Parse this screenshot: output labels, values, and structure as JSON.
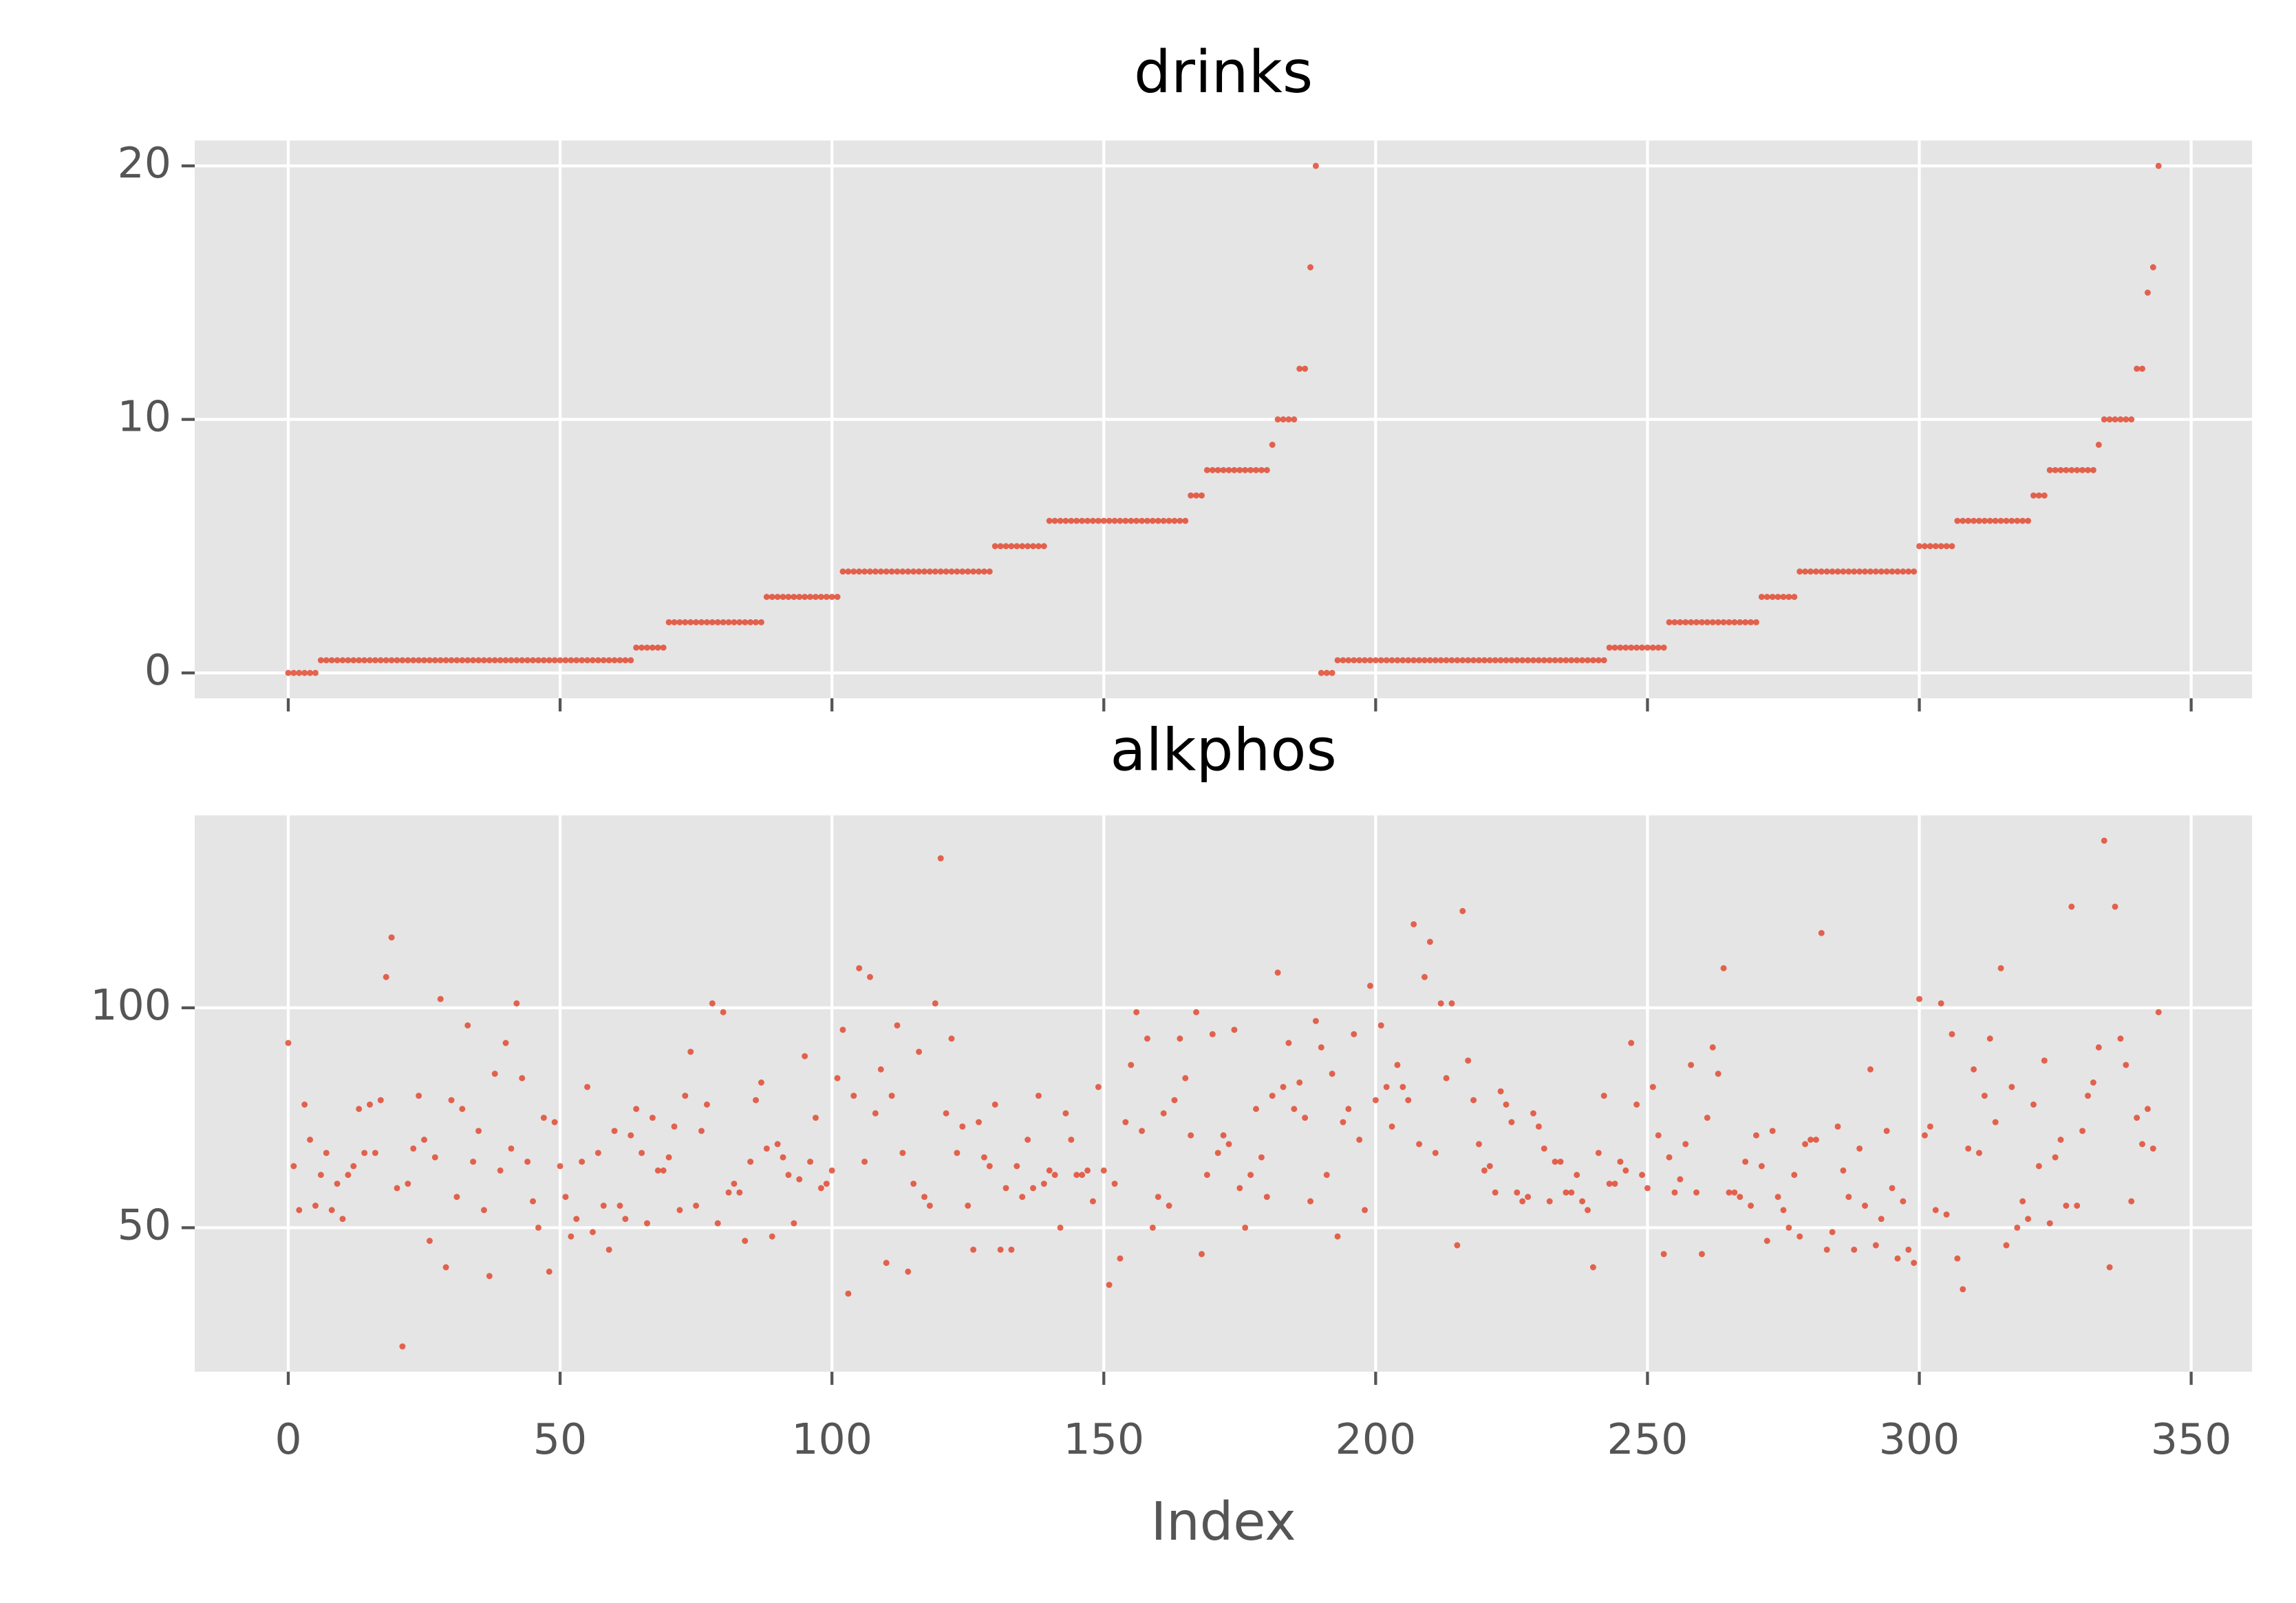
{
  "chart_data": [
    {
      "type": "scatter",
      "title": "drinks",
      "color": "#e24a33",
      "xlim": [
        -17.2,
        361.2
      ],
      "ylim": [
        -1,
        21
      ],
      "xticks": [
        0,
        50,
        100,
        150,
        200,
        250,
        300,
        350
      ],
      "yticks": [
        0,
        10,
        20
      ],
      "grid": true,
      "x": [
        0,
        1,
        2,
        3,
        4,
        5,
        6,
        7,
        8,
        9,
        10,
        11,
        12,
        13,
        14,
        15,
        16,
        17,
        18,
        19,
        20,
        21,
        22,
        23,
        24,
        25,
        26,
        27,
        28,
        29,
        30,
        31,
        32,
        33,
        34,
        35,
        36,
        37,
        38,
        39,
        40,
        41,
        42,
        43,
        44,
        45,
        46,
        47,
        48,
        49,
        50,
        51,
        52,
        53,
        54,
        55,
        56,
        57,
        58,
        59,
        60,
        61,
        62,
        63,
        64,
        65,
        66,
        67,
        68,
        69,
        70,
        71,
        72,
        73,
        74,
        75,
        76,
        77,
        78,
        79,
        80,
        81,
        82,
        83,
        84,
        85,
        86,
        87,
        88,
        89,
        90,
        91,
        92,
        93,
        94,
        95,
        96,
        97,
        98,
        99,
        100,
        101,
        102,
        103,
        104,
        105,
        106,
        107,
        108,
        109,
        110,
        111,
        112,
        113,
        114,
        115,
        116,
        117,
        118,
        119,
        120,
        121,
        122,
        123,
        124,
        125,
        126,
        127,
        128,
        129,
        130,
        131,
        132,
        133,
        134,
        135,
        136,
        137,
        138,
        139,
        140,
        141,
        142,
        143,
        144,
        145,
        146,
        147,
        148,
        149,
        150,
        151,
        152,
        153,
        154,
        155,
        156,
        157,
        158,
        159,
        160,
        161,
        162,
        163,
        164,
        165,
        166,
        167,
        168,
        169,
        170,
        171,
        172,
        173,
        174,
        175,
        176,
        177,
        178,
        179,
        180,
        181,
        182,
        183,
        184,
        185,
        186,
        187,
        188,
        189,
        190,
        191,
        192,
        193,
        194,
        195,
        196,
        197,
        198,
        199,
        200,
        201,
        202,
        203,
        204,
        205,
        206,
        207,
        208,
        209,
        210,
        211,
        212,
        213,
        214,
        215,
        216,
        217,
        218,
        219,
        220,
        221,
        222,
        223,
        224,
        225,
        226,
        227,
        228,
        229,
        230,
        231,
        232,
        233,
        234,
        235,
        236,
        237,
        238,
        239,
        240,
        241,
        242,
        243,
        244,
        245,
        246,
        247,
        248,
        249,
        250,
        251,
        252,
        253,
        254,
        255,
        256,
        257,
        258,
        259,
        260,
        261,
        262,
        263,
        264,
        265,
        266,
        267,
        268,
        269,
        270,
        271,
        272,
        273,
        274,
        275,
        276,
        277,
        278,
        279,
        280,
        281,
        282,
        283,
        284,
        285,
        286,
        287,
        288,
        289,
        290,
        291,
        292,
        293,
        294,
        295,
        296,
        297,
        298,
        299,
        300,
        301,
        302,
        303,
        304,
        305,
        306,
        307,
        308,
        309,
        310,
        311,
        312,
        313,
        314,
        315,
        316,
        317,
        318,
        319,
        320,
        321,
        322,
        323,
        324,
        325,
        326,
        327,
        328,
        329,
        330,
        331,
        332,
        333,
        334,
        335,
        336,
        337,
        338,
        339,
        340,
        341,
        342,
        343,
        344
      ],
      "values": [
        0,
        0,
        0,
        0,
        0,
        0,
        0.5,
        0.5,
        0.5,
        0.5,
        0.5,
        0.5,
        0.5,
        0.5,
        0.5,
        0.5,
        0.5,
        0.5,
        0.5,
        0.5,
        0.5,
        0.5,
        0.5,
        0.5,
        0.5,
        0.5,
        0.5,
        0.5,
        0.5,
        0.5,
        0.5,
        0.5,
        0.5,
        0.5,
        0.5,
        0.5,
        0.5,
        0.5,
        0.5,
        0.5,
        0.5,
        0.5,
        0.5,
        0.5,
        0.5,
        0.5,
        0.5,
        0.5,
        0.5,
        0.5,
        0.5,
        0.5,
        0.5,
        0.5,
        0.5,
        0.5,
        0.5,
        0.5,
        0.5,
        0.5,
        0.5,
        0.5,
        0.5,
        0.5,
        1,
        1,
        1,
        1,
        1,
        1,
        2,
        2,
        2,
        2,
        2,
        2,
        2,
        2,
        2,
        2,
        2,
        2,
        2,
        2,
        2,
        2,
        2,
        2,
        3,
        3,
        3,
        3,
        3,
        3,
        3,
        3,
        3,
        3,
        3,
        3,
        3,
        3,
        4,
        4,
        4,
        4,
        4,
        4,
        4,
        4,
        4,
        4,
        4,
        4,
        4,
        4,
        4,
        4,
        4,
        4,
        4,
        4,
        4,
        4,
        4,
        4,
        4,
        4,
        4,
        4,
        5,
        5,
        5,
        5,
        5,
        5,
        5,
        5,
        5,
        5,
        6,
        6,
        6,
        6,
        6,
        6,
        6,
        6,
        6,
        6,
        6,
        6,
        6,
        6,
        6,
        6,
        6,
        6,
        6,
        6,
        6,
        6,
        6,
        6,
        6,
        6,
        7,
        7,
        7,
        8,
        8,
        8,
        8,
        8,
        8,
        8,
        8,
        8,
        8,
        8,
        8,
        9,
        10,
        10,
        10,
        10,
        12,
        12,
        16,
        20,
        0,
        0,
        0,
        0.5,
        0.5,
        0.5,
        0.5,
        0.5,
        0.5,
        0.5,
        0.5,
        0.5,
        0.5,
        0.5,
        0.5,
        0.5,
        0.5,
        0.5,
        0.5,
        0.5,
        0.5,
        0.5,
        0.5,
        0.5,
        0.5,
        0.5,
        0.5,
        0.5,
        0.5,
        0.5,
        0.5,
        0.5,
        0.5,
        0.5,
        0.5,
        0.5,
        0.5,
        0.5,
        0.5,
        0.5,
        0.5,
        0.5,
        0.5,
        0.5,
        0.5,
        0.5,
        0.5,
        0.5,
        0.5,
        0.5,
        0.5,
        0.5,
        0.5,
        1,
        1,
        1,
        1,
        1,
        1,
        1,
        1,
        1,
        1,
        1,
        2,
        2,
        2,
        2,
        2,
        2,
        2,
        2,
        2,
        2,
        2,
        2,
        2,
        2,
        2,
        2,
        2,
        3,
        3,
        3,
        3,
        3,
        3,
        3,
        4,
        4,
        4,
        4,
        4,
        4,
        4,
        4,
        4,
        4,
        4,
        4,
        4,
        4,
        4,
        4,
        4,
        4,
        4,
        4,
        4,
        4,
        5,
        5,
        5,
        5,
        5,
        5,
        5,
        6,
        6,
        6,
        6,
        6,
        6,
        6,
        6,
        6,
        6,
        6,
        6,
        6,
        6,
        7,
        7,
        7,
        8,
        8,
        8,
        8,
        8,
        8,
        8,
        8,
        8,
        9,
        10,
        10,
        10,
        10,
        10,
        10,
        12,
        12,
        15,
        16,
        20
      ]
    },
    {
      "type": "scatter",
      "title": "alkphos",
      "xlabel": "Index",
      "color": "#e24a33",
      "xlim": [
        -17.2,
        361.2
      ],
      "ylim": [
        17.25,
        143.75
      ],
      "xticks": [
        0,
        50,
        100,
        150,
        200,
        250,
        300,
        350
      ],
      "yticks": [
        50,
        100
      ],
      "grid": true,
      "x": [
        0,
        1,
        2,
        3,
        4,
        5,
        6,
        7,
        8,
        9,
        10,
        11,
        12,
        13,
        14,
        15,
        16,
        17,
        18,
        19,
        20,
        21,
        22,
        23,
        24,
        25,
        26,
        27,
        28,
        29,
        30,
        31,
        32,
        33,
        34,
        35,
        36,
        37,
        38,
        39,
        40,
        41,
        42,
        43,
        44,
        45,
        46,
        47,
        48,
        49,
        50,
        51,
        52,
        53,
        54,
        55,
        56,
        57,
        58,
        59,
        60,
        61,
        62,
        63,
        64,
        65,
        66,
        67,
        68,
        69,
        70,
        71,
        72,
        73,
        74,
        75,
        76,
        77,
        78,
        79,
        80,
        81,
        82,
        83,
        84,
        85,
        86,
        87,
        88,
        89,
        90,
        91,
        92,
        93,
        94,
        95,
        96,
        97,
        98,
        99,
        100,
        101,
        102,
        103,
        104,
        105,
        106,
        107,
        108,
        109,
        110,
        111,
        112,
        113,
        114,
        115,
        116,
        117,
        118,
        119,
        120,
        121,
        122,
        123,
        124,
        125,
        126,
        127,
        128,
        129,
        130,
        131,
        132,
        133,
        134,
        135,
        136,
        137,
        138,
        139,
        140,
        141,
        142,
        143,
        144,
        145,
        146,
        147,
        148,
        149,
        150,
        151,
        152,
        153,
        154,
        155,
        156,
        157,
        158,
        159,
        160,
        161,
        162,
        163,
        164,
        165,
        166,
        167,
        168,
        169,
        170,
        171,
        172,
        173,
        174,
        175,
        176,
        177,
        178,
        179,
        180,
        181,
        182,
        183,
        184,
        185,
        186,
        187,
        188,
        189,
        190,
        191,
        192,
        193,
        194,
        195,
        196,
        197,
        198,
        199,
        200,
        201,
        202,
        203,
        204,
        205,
        206,
        207,
        208,
        209,
        210,
        211,
        212,
        213,
        214,
        215,
        216,
        217,
        218,
        219,
        220,
        221,
        222,
        223,
        224,
        225,
        226,
        227,
        228,
        229,
        230,
        231,
        232,
        233,
        234,
        235,
        236,
        237,
        238,
        239,
        240,
        241,
        242,
        243,
        244,
        245,
        246,
        247,
        248,
        249,
        250,
        251,
        252,
        253,
        254,
        255,
        256,
        257,
        258,
        259,
        260,
        261,
        262,
        263,
        264,
        265,
        266,
        267,
        268,
        269,
        270,
        271,
        272,
        273,
        274,
        275,
        276,
        277,
        278,
        279,
        280,
        281,
        282,
        283,
        284,
        285,
        286,
        287,
        288,
        289,
        290,
        291,
        292,
        293,
        294,
        295,
        296,
        297,
        298,
        299,
        300,
        301,
        302,
        303,
        304,
        305,
        306,
        307,
        308,
        309,
        310,
        311,
        312,
        313,
        314,
        315,
        316,
        317,
        318,
        319,
        320,
        321,
        322,
        323,
        324,
        325,
        326,
        327,
        328,
        329,
        330,
        331,
        332,
        333,
        334,
        335,
        336,
        337,
        338,
        339,
        340,
        341,
        342,
        343,
        344
      ],
      "values": [
        92,
        64,
        54,
        78,
        70,
        55,
        62,
        67,
        54,
        60,
        52,
        62,
        64,
        77,
        67,
        78,
        67,
        79,
        107,
        116,
        59,
        23,
        60,
        68,
        80,
        70,
        47,
        66,
        102,
        41,
        79,
        57,
        77,
        96,
        65,
        72,
        54,
        39,
        85,
        63,
        92,
        68,
        101,
        84,
        65,
        56,
        50,
        75,
        40,
        74,
        64,
        57,
        48,
        52,
        65,
        82,
        49,
        67,
        55,
        45,
        72,
        55,
        52,
        71,
        77,
        67,
        51,
        75,
        63,
        63,
        66,
        73,
        54,
        80,
        90,
        55,
        72,
        78,
        101,
        51,
        99,
        58,
        60,
        58,
        47,
        65,
        79,
        83,
        68,
        48,
        69,
        66,
        62,
        51,
        61,
        89,
        65,
        75,
        59,
        60,
        63,
        84,
        95,
        35,
        80,
        109,
        65,
        107,
        76,
        86,
        42,
        80,
        96,
        67,
        40,
        60,
        90,
        57,
        55,
        101,
        134,
        76,
        93,
        67,
        73,
        55,
        45,
        74,
        66,
        64,
        78,
        45,
        59,
        45,
        64,
        57,
        70,
        59,
        80,
        60,
        63,
        62,
        50,
        76,
        70,
        62,
        62,
        63,
        56,
        82,
        63,
        37,
        60,
        43,
        74,
        87,
        99,
        72,
        93,
        50,
        57,
        76,
        55,
        79,
        93,
        84,
        71,
        99,
        44,
        62,
        94,
        67,
        71,
        69,
        95,
        59,
        50,
        62,
        77,
        66,
        57,
        80,
        108,
        82,
        92,
        77,
        83,
        75,
        56,
        97,
        91,
        62,
        85,
        48,
        74,
        77,
        94,
        70,
        54,
        105,
        79,
        96,
        82,
        73,
        87,
        82,
        79,
        119,
        69,
        107,
        115,
        67,
        101,
        84,
        101,
        46,
        122,
        88,
        79,
        69,
        63,
        64,
        58,
        81,
        78,
        74,
        58,
        56,
        57,
        76,
        73,
        68,
        56,
        65,
        65,
        58,
        58,
        62,
        56,
        54,
        41,
        67,
        80,
        60,
        60,
        65,
        63,
        92,
        78,
        62,
        59,
        82,
        71,
        44,
        66,
        58,
        61,
        69,
        87,
        58,
        44,
        75,
        91,
        85,
        109,
        58,
        58,
        57,
        65,
        55,
        71,
        64,
        47,
        72,
        57,
        54,
        50,
        62,
        48,
        69,
        70,
        70,
        117,
        45,
        49,
        73,
        63,
        57,
        45,
        68,
        55,
        86,
        46,
        52,
        72,
        59,
        43,
        56,
        45,
        42,
        102,
        71,
        73,
        54,
        101,
        53,
        94,
        43,
        36,
        68,
        86,
        67,
        80,
        93,
        74,
        109,
        46,
        82,
        50,
        56,
        52,
        78,
        64,
        88,
        51,
        66,
        70,
        55,
        123,
        55,
        72,
        80,
        83,
        91,
        138,
        41,
        123,
        93,
        87,
        56,
        75,
        69,
        77,
        68,
        99
      ]
    }
  ]
}
